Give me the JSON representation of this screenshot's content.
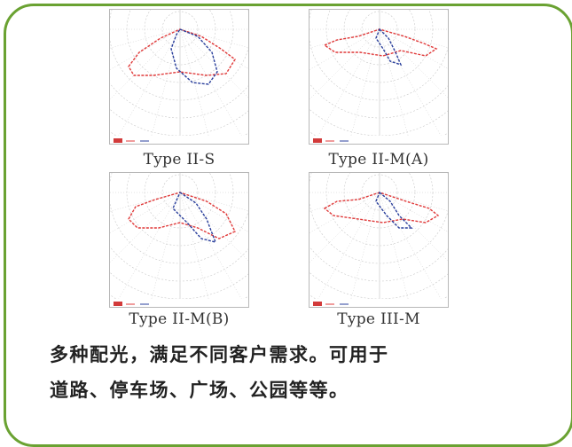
{
  "panels": [
    {
      "caption": "Type II-S",
      "variant": "ii-s"
    },
    {
      "caption": "Type II-M(A)",
      "variant": "ii-ma"
    },
    {
      "caption": "Type II-M(B)",
      "variant": "ii-mb"
    },
    {
      "caption": "Type III-M",
      "variant": "iii-m"
    }
  ],
  "description": {
    "line1": "多种配光，满足不同客户需求。可用于",
    "line2": "道路、停车场、广场、公园等等。"
  },
  "colors": {
    "border": "#6aa232",
    "curve_horizontal": "#e03a3a",
    "curve_vertical": "#2a3f9c",
    "grid": "#c8c8c8"
  }
}
